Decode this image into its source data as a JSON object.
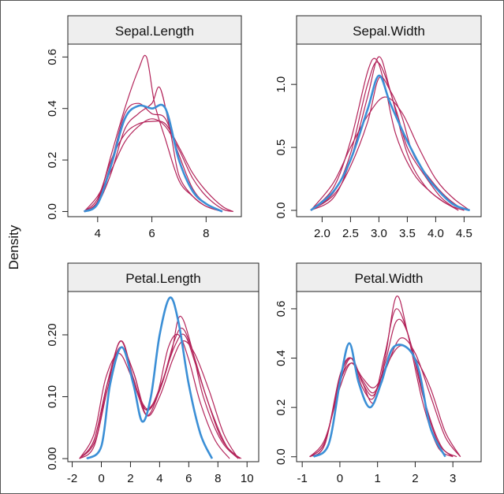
{
  "figure": {
    "ylabel": "Density"
  },
  "colors": {
    "observed": "#3b8fd6",
    "replicates": "#b3245a"
  },
  "chart_data": [
    {
      "type": "line",
      "title": "Sepal.Length",
      "xlim": [
        2.9,
        9.3
      ],
      "ylim": [
        -0.02,
        0.65
      ],
      "xticks": [
        4,
        6,
        8
      ],
      "xtick_labels": [
        "4",
        "6",
        "8"
      ],
      "yticks": [
        0.0,
        0.2,
        0.4,
        0.6
      ],
      "ytick_labels": [
        "0.0",
        "0.2",
        "0.4",
        "0.6"
      ],
      "grid": false,
      "series": [
        {
          "role": "observed",
          "x": [
            3.5,
            4.0,
            4.5,
            5.0,
            5.5,
            6.0,
            6.5,
            7.0,
            7.5,
            8.0,
            8.6
          ],
          "y": [
            0.0,
            0.03,
            0.18,
            0.36,
            0.41,
            0.4,
            0.4,
            0.2,
            0.08,
            0.03,
            0.0
          ]
        },
        {
          "role": "replicate",
          "x": [
            3.5,
            4.0,
            4.5,
            5.0,
            5.5,
            5.8,
            6.1,
            6.5,
            7.0,
            7.5,
            8.0,
            8.6
          ],
          "y": [
            0.0,
            0.04,
            0.22,
            0.4,
            0.55,
            0.6,
            0.42,
            0.28,
            0.12,
            0.06,
            0.02,
            0.0
          ]
        },
        {
          "role": "replicate",
          "x": [
            3.5,
            4.0,
            4.5,
            5.0,
            5.5,
            6.0,
            6.3,
            6.7,
            7.0,
            7.5,
            8.0,
            8.6
          ],
          "y": [
            0.0,
            0.03,
            0.15,
            0.32,
            0.38,
            0.42,
            0.48,
            0.3,
            0.14,
            0.06,
            0.02,
            0.0
          ]
        },
        {
          "role": "replicate",
          "x": [
            3.5,
            4.0,
            4.5,
            5.0,
            5.5,
            6.0,
            6.5,
            7.0,
            7.5,
            8.0,
            8.6,
            9.0
          ],
          "y": [
            0.0,
            0.05,
            0.2,
            0.3,
            0.34,
            0.35,
            0.34,
            0.25,
            0.15,
            0.08,
            0.02,
            0.0
          ]
        },
        {
          "role": "replicate",
          "x": [
            3.5,
            4.0,
            4.5,
            5.0,
            5.5,
            6.0,
            6.5,
            7.0,
            7.5,
            8.0,
            8.6
          ],
          "y": [
            0.0,
            0.04,
            0.19,
            0.38,
            0.42,
            0.38,
            0.36,
            0.22,
            0.09,
            0.03,
            0.0
          ]
        },
        {
          "role": "replicate",
          "x": [
            3.5,
            4.0,
            4.5,
            5.0,
            5.5,
            6.0,
            6.5,
            7.0,
            7.5,
            8.0,
            8.6,
            9.0
          ],
          "y": [
            0.0,
            0.06,
            0.16,
            0.27,
            0.33,
            0.36,
            0.33,
            0.24,
            0.13,
            0.06,
            0.01,
            0.0
          ]
        }
      ]
    },
    {
      "type": "line",
      "title": "Sepal.Width",
      "xlim": [
        1.55,
        4.8
      ],
      "ylim": [
        -0.05,
        1.32
      ],
      "xticks": [
        2.0,
        2.5,
        3.0,
        3.5,
        4.0,
        4.5
      ],
      "xtick_labels": [
        "2.0",
        "2.5",
        "3.0",
        "3.5",
        "4.0",
        "4.5"
      ],
      "yticks": [
        0.0,
        0.5,
        1.0
      ],
      "ytick_labels": [
        "0.0",
        "0.5",
        "1.0"
      ],
      "grid": false,
      "series": [
        {
          "role": "observed",
          "x": [
            1.8,
            2.2,
            2.5,
            2.8,
            3.0,
            3.2,
            3.5,
            3.8,
            4.0,
            4.3,
            4.6
          ],
          "y": [
            0.0,
            0.15,
            0.4,
            0.8,
            1.07,
            0.85,
            0.55,
            0.3,
            0.18,
            0.05,
            0.0
          ]
        },
        {
          "role": "replicate",
          "x": [
            1.8,
            2.2,
            2.5,
            2.8,
            2.95,
            3.1,
            3.3,
            3.6,
            3.9,
            4.2,
            4.5
          ],
          "y": [
            0.0,
            0.18,
            0.55,
            1.1,
            1.2,
            1.0,
            0.6,
            0.3,
            0.15,
            0.05,
            0.0
          ]
        },
        {
          "role": "replicate",
          "x": [
            1.8,
            2.2,
            2.5,
            2.8,
            3.0,
            3.2,
            3.5,
            3.8,
            4.1,
            4.4
          ],
          "y": [
            0.0,
            0.1,
            0.4,
            0.9,
            1.22,
            0.95,
            0.45,
            0.2,
            0.08,
            0.0
          ]
        },
        {
          "role": "replicate",
          "x": [
            1.8,
            2.2,
            2.5,
            2.8,
            3.1,
            3.4,
            3.7,
            4.0,
            4.3,
            4.6
          ],
          "y": [
            0.0,
            0.22,
            0.5,
            0.75,
            0.9,
            0.78,
            0.5,
            0.25,
            0.1,
            0.0
          ]
        },
        {
          "role": "replicate",
          "x": [
            1.8,
            2.2,
            2.5,
            2.8,
            3.0,
            3.3,
            3.5,
            3.8,
            4.1,
            4.4
          ],
          "y": [
            0.0,
            0.14,
            0.45,
            1.0,
            1.17,
            0.8,
            0.5,
            0.28,
            0.1,
            0.0
          ]
        },
        {
          "role": "replicate",
          "x": [
            1.8,
            2.2,
            2.5,
            2.8,
            3.0,
            3.2,
            3.4,
            3.6,
            3.9,
            4.2,
            4.5
          ],
          "y": [
            0.0,
            0.12,
            0.35,
            0.7,
            1.05,
            0.95,
            0.75,
            0.45,
            0.25,
            0.1,
            0.0
          ]
        }
      ]
    },
    {
      "type": "line",
      "title": "Petal.Length",
      "xlim": [
        -2.3,
        10.8
      ],
      "ylim": [
        -0.005,
        0.27
      ],
      "xticks": [
        -2,
        0,
        2,
        4,
        6,
        8,
        10
      ],
      "xtick_labels": [
        "-2",
        "0",
        "2",
        "4",
        "6",
        "8",
        "10"
      ],
      "yticks": [
        0.0,
        0.1,
        0.2
      ],
      "ytick_labels": [
        "0.00",
        "0.10",
        "0.20"
      ],
      "grid": false,
      "series": [
        {
          "role": "observed",
          "x": [
            -1.0,
            0.0,
            0.6,
            1.4,
            2.2,
            2.8,
            3.4,
            4.0,
            4.7,
            5.3,
            6.0,
            6.8,
            7.6
          ],
          "y": [
            0.0,
            0.02,
            0.12,
            0.18,
            0.12,
            0.06,
            0.1,
            0.2,
            0.26,
            0.22,
            0.12,
            0.04,
            0.0
          ]
        },
        {
          "role": "replicate",
          "x": [
            -1.5,
            -0.5,
            0.4,
            1.3,
            2.2,
            3.0,
            3.8,
            4.6,
            5.3,
            6.0,
            6.8,
            7.8,
            8.8
          ],
          "y": [
            0.0,
            0.03,
            0.12,
            0.18,
            0.14,
            0.08,
            0.1,
            0.18,
            0.2,
            0.16,
            0.09,
            0.03,
            0.0
          ]
        },
        {
          "role": "replicate",
          "x": [
            -1.5,
            -0.5,
            0.4,
            1.3,
            2.2,
            3.1,
            4.0,
            4.8,
            5.4,
            6.2,
            7.0,
            8.2,
            9.4
          ],
          "y": [
            0.0,
            0.02,
            0.11,
            0.19,
            0.13,
            0.07,
            0.11,
            0.17,
            0.23,
            0.18,
            0.1,
            0.03,
            0.0
          ]
        },
        {
          "role": "replicate",
          "x": [
            -1.5,
            -0.5,
            0.3,
            1.2,
            2.1,
            3.0,
            4.0,
            5.0,
            5.6,
            6.3,
            7.2,
            8.3,
            9.5
          ],
          "y": [
            0.0,
            0.04,
            0.13,
            0.17,
            0.13,
            0.08,
            0.11,
            0.19,
            0.21,
            0.17,
            0.1,
            0.03,
            0.0
          ]
        },
        {
          "role": "replicate",
          "x": [
            -1.5,
            -0.5,
            0.4,
            1.3,
            2.2,
            3.1,
            4.0,
            4.9,
            5.6,
            6.4,
            7.4,
            8.4,
            9.4
          ],
          "y": [
            0.0,
            0.03,
            0.12,
            0.18,
            0.14,
            0.07,
            0.1,
            0.16,
            0.19,
            0.17,
            0.11,
            0.04,
            0.0
          ]
        },
        {
          "role": "replicate",
          "x": [
            -1.5,
            -0.4,
            0.5,
            1.4,
            2.3,
            3.2,
            4.1,
            5.0,
            5.7,
            6.5,
            7.5,
            8.6,
            9.6
          ],
          "y": [
            0.0,
            0.03,
            0.13,
            0.19,
            0.12,
            0.08,
            0.12,
            0.18,
            0.2,
            0.15,
            0.08,
            0.02,
            0.0
          ]
        }
      ]
    },
    {
      "type": "line",
      "title": "Petal.Width",
      "xlim": [
        -1.15,
        3.75
      ],
      "ylim": [
        -0.02,
        0.67
      ],
      "xticks": [
        -1,
        0,
        1,
        2,
        3
      ],
      "xtick_labels": [
        "-1",
        "0",
        "1",
        "2",
        "3"
      ],
      "yticks": [
        0.0,
        0.2,
        0.4,
        0.6
      ],
      "ytick_labels": [
        "0.0",
        "0.2",
        "0.4",
        "0.6"
      ],
      "grid": false,
      "series": [
        {
          "role": "observed",
          "x": [
            -0.7,
            -0.3,
            0.0,
            0.25,
            0.5,
            0.8,
            1.1,
            1.4,
            1.8,
            2.1,
            2.4,
            2.8
          ],
          "y": [
            0.0,
            0.05,
            0.3,
            0.46,
            0.3,
            0.2,
            0.3,
            0.44,
            0.44,
            0.35,
            0.12,
            0.0
          ]
        },
        {
          "role": "replicate",
          "x": [
            -0.8,
            -0.4,
            0.0,
            0.3,
            0.6,
            0.9,
            1.2,
            1.5,
            1.8,
            2.2,
            2.6,
            3.0
          ],
          "y": [
            0.0,
            0.06,
            0.3,
            0.4,
            0.3,
            0.22,
            0.4,
            0.65,
            0.5,
            0.22,
            0.04,
            0.0
          ]
        },
        {
          "role": "replicate",
          "x": [
            -0.8,
            -0.4,
            0.0,
            0.3,
            0.6,
            0.9,
            1.2,
            1.5,
            1.8,
            2.2,
            2.6,
            3.0
          ],
          "y": [
            0.0,
            0.05,
            0.32,
            0.4,
            0.3,
            0.25,
            0.38,
            0.55,
            0.5,
            0.25,
            0.06,
            0.0
          ]
        },
        {
          "role": "replicate",
          "x": [
            -0.8,
            -0.4,
            0.0,
            0.3,
            0.6,
            0.9,
            1.2,
            1.6,
            2.0,
            2.4,
            2.8,
            3.2
          ],
          "y": [
            0.0,
            0.07,
            0.28,
            0.38,
            0.32,
            0.28,
            0.35,
            0.48,
            0.42,
            0.25,
            0.08,
            0.0
          ]
        },
        {
          "role": "replicate",
          "x": [
            -0.8,
            -0.4,
            0.0,
            0.3,
            0.6,
            0.9,
            1.2,
            1.6,
            2.0,
            2.4,
            2.8,
            3.2
          ],
          "y": [
            0.0,
            0.06,
            0.3,
            0.38,
            0.31,
            0.26,
            0.36,
            0.45,
            0.4,
            0.28,
            0.1,
            0.0
          ]
        },
        {
          "role": "replicate",
          "x": [
            -0.8,
            -0.4,
            0.0,
            0.3,
            0.6,
            0.9,
            1.2,
            1.5,
            1.9,
            2.3,
            2.7,
            3.1
          ],
          "y": [
            0.0,
            0.05,
            0.33,
            0.4,
            0.28,
            0.24,
            0.42,
            0.6,
            0.45,
            0.2,
            0.04,
            0.0
          ]
        }
      ]
    }
  ]
}
